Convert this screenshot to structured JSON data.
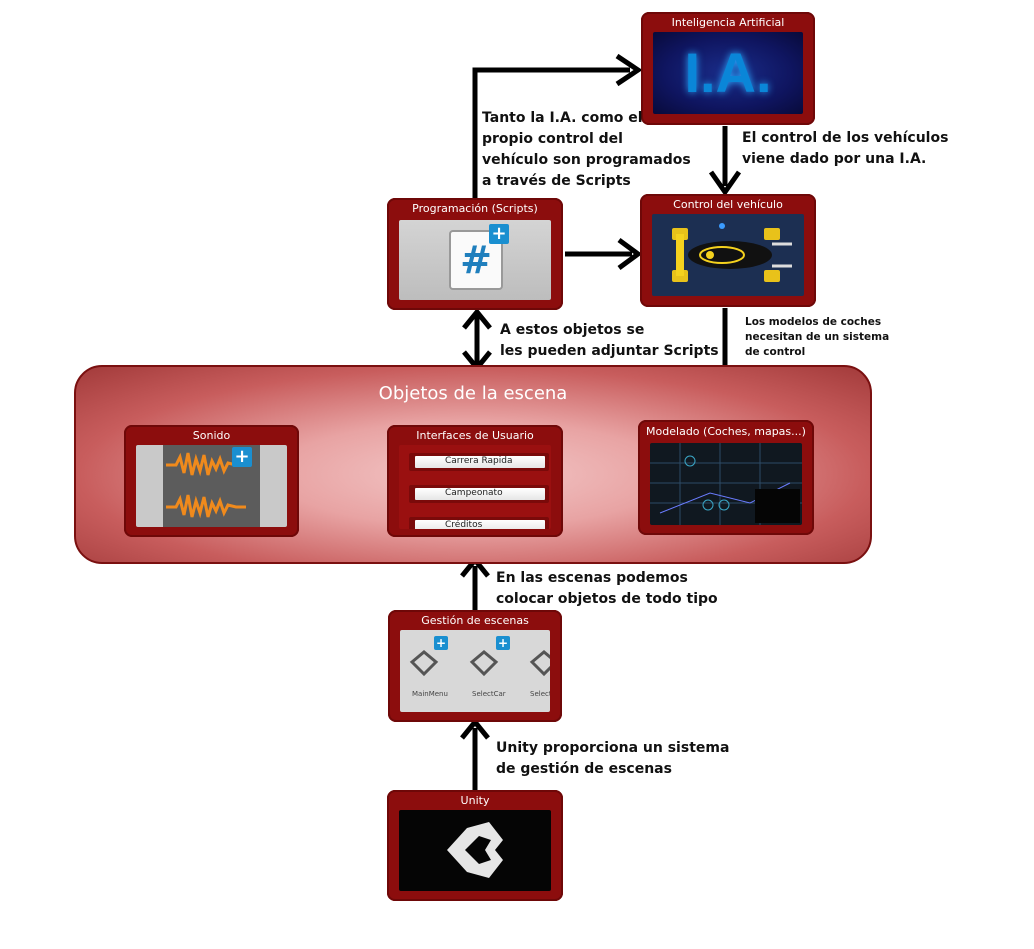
{
  "cards": {
    "ia": {
      "title": "Inteligencia Artificial",
      "logo_text": "I.A."
    },
    "control": {
      "title": "Control del vehículo"
    },
    "programacion": {
      "title": "Programación (Scripts)"
    },
    "sonido": {
      "title": "Sonido"
    },
    "interfaces": {
      "title": "Interfaces de Usuario",
      "buttons": [
        "Carrera Rapida",
        "Campeonato",
        "Créditos"
      ]
    },
    "modelado": {
      "title": "Modelado (Coches, mapas...)"
    },
    "gestion": {
      "title": "Gestión de escenas",
      "scenes": [
        "MainMenu",
        "SelectCar",
        "Selecti"
      ]
    },
    "unity": {
      "title": "Unity"
    }
  },
  "scene_panel": {
    "title": "Objetos de la escena"
  },
  "notes": {
    "scripts_note": [
      "Tanto la I.A. como el",
      "propio control del",
      "vehículo son programados",
      "a través de Scripts"
    ],
    "ia_control_note": [
      "El control de los vehículos",
      "viene dado por una I.A."
    ],
    "attach_note": [
      "A estos objetos se",
      "les pueden adjuntar Scripts"
    ],
    "models_note": [
      "Los modelos de coches",
      "necesitan de un sistema",
      "de control"
    ],
    "scenes_note": [
      "En las escenas podemos",
      "colocar objetos de todo tipo"
    ],
    "unity_note": [
      "Unity proporciona un sistema",
      "de gestión de escenas"
    ]
  },
  "colors": {
    "card": "#8c0d0d",
    "accent": "#1a8fd0",
    "waveform": "#f08a1c"
  }
}
